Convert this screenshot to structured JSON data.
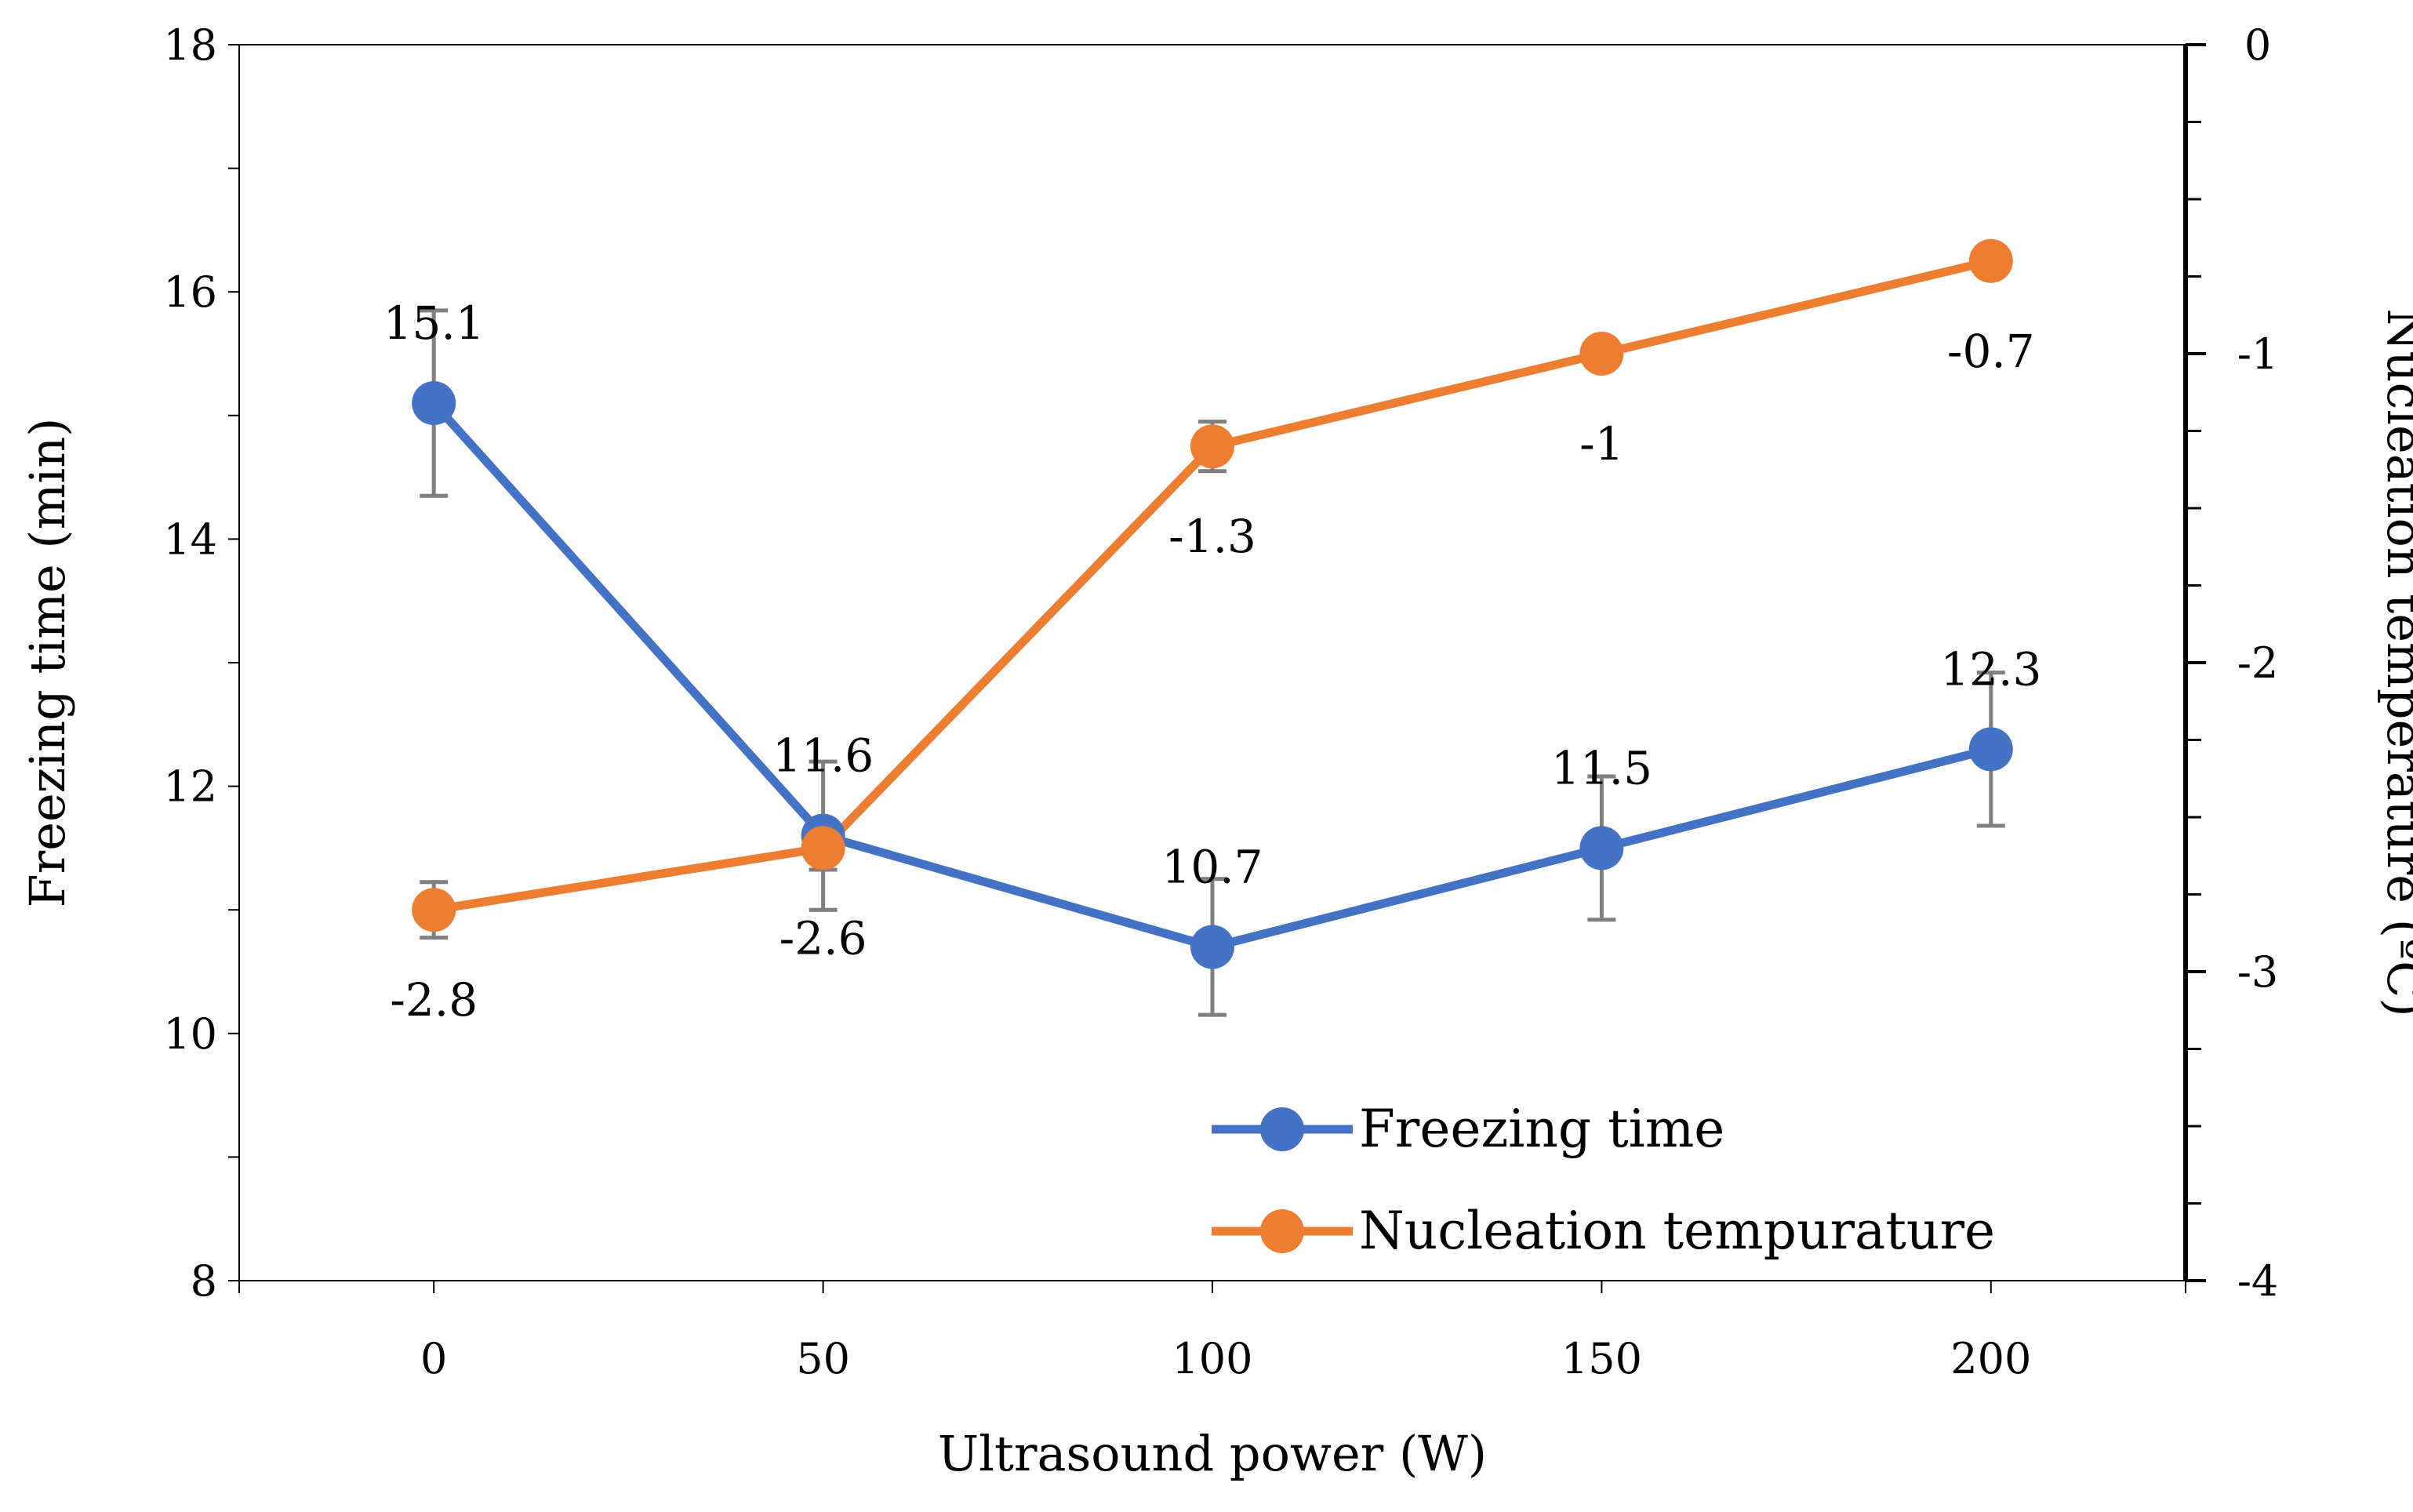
{
  "chart_data": {
    "type": "line",
    "title": "",
    "xlabel": "Ultrasound power (W)",
    "ylabel": "Freezing time (min)",
    "y2label": "Nucleation temperature (ºC)",
    "x": [
      0,
      50,
      100,
      150,
      200
    ],
    "xlim": [
      -25,
      225
    ],
    "ylim": [
      8,
      18
    ],
    "y2lim": [
      -4,
      0
    ],
    "y_ticks": [
      8,
      10,
      12,
      14,
      16,
      18
    ],
    "y2_ticks": [
      -4,
      -3,
      -2,
      -1,
      0
    ],
    "x_ticks": [
      0,
      50,
      100,
      150,
      200
    ],
    "grid": false,
    "legend_position": "bottom-right",
    "series": [
      {
        "name": "Freezing time",
        "axis": "left",
        "color": "#4472C4",
        "values": [
          15.1,
          11.6,
          10.7,
          11.5,
          12.3
        ],
        "labels": [
          "15.1",
          "11.6",
          "10.7",
          "11.5",
          "12.3"
        ],
        "error": [
          0.75,
          0.6,
          0.55,
          0.58,
          0.62
        ]
      },
      {
        "name": "Nucleation tempurature",
        "axis": "right",
        "color": "#ED7D31",
        "values": [
          -2.8,
          -2.6,
          -1.3,
          -1.0,
          -0.7
        ],
        "labels": [
          "-2.8",
          "-2.6",
          "-1.3",
          "-1",
          "-0.7"
        ],
        "error": [
          0.09,
          0.07,
          0.08,
          0.0,
          0.0
        ]
      }
    ]
  }
}
